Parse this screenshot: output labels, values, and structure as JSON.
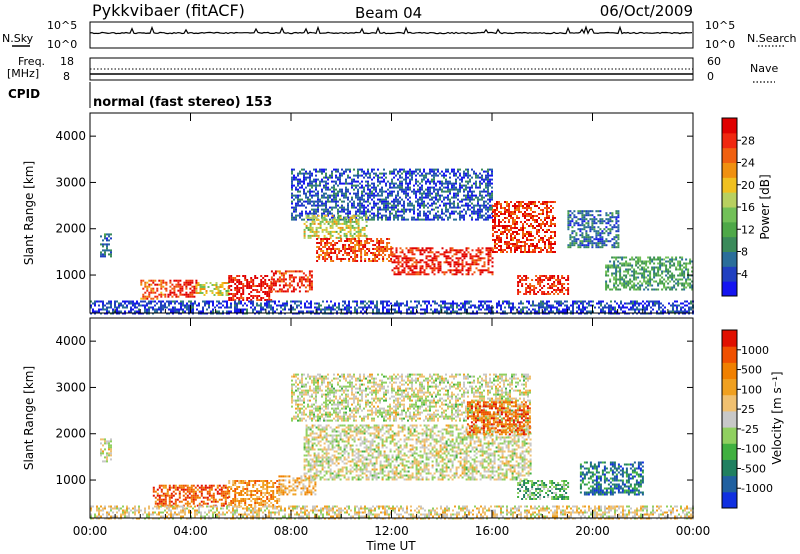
{
  "header": {
    "station": "Pykkvibaer (fitACF)",
    "beam": "Beam 04",
    "date": "06/Oct/2009"
  },
  "noise_panel": {
    "left_label": "N.Sky",
    "right_label": "N.Search",
    "left_ticks": [
      "10^5",
      "10^0"
    ],
    "right_ticks": [
      "10^5",
      "10^0"
    ]
  },
  "freq_panel": {
    "left_label_1": "Freq.",
    "left_label_2": "[MHz]",
    "right_label": "Nave",
    "left_ticks": [
      "18",
      "8"
    ],
    "right_ticks": [
      "60",
      "0"
    ]
  },
  "cpid": {
    "label": "CPID",
    "mode": "normal (fast stereo) 153"
  },
  "chart_data": [
    {
      "type": "heatmap",
      "quantity": "power",
      "ylabel": "Slant Range [km]",
      "ylim": [
        180,
        4500
      ],
      "yticks": [
        "1000",
        "2000",
        "3000",
        "4000"
      ],
      "xlim_hours": [
        0,
        24
      ],
      "colorbar": {
        "label": "Power [dB]",
        "ticks": [
          "28",
          "24",
          "20",
          "16",
          "12",
          "8",
          "4"
        ],
        "colors": [
          "#1414f0",
          "#2040c0",
          "#2a6e9a",
          "#3a8a5a",
          "#4ea848",
          "#72c058",
          "#b8d060",
          "#f0c020",
          "#f09010",
          "#f06010",
          "#f02810",
          "#e00000"
        ]
      },
      "regions": [
        {
          "x0": 0.4,
          "x1": 0.8,
          "y0": 1400,
          "y1": 1900,
          "level": 0.2
        },
        {
          "x0": 2.0,
          "x1": 3.0,
          "y0": 500,
          "y1": 900,
          "level": 0.8
        },
        {
          "x0": 3.0,
          "x1": 4.2,
          "y0": 550,
          "y1": 900,
          "level": 0.92
        },
        {
          "x0": 4.2,
          "x1": 5.5,
          "y0": 550,
          "y1": 850,
          "level": 0.55
        },
        {
          "x0": 5.5,
          "x1": 7.2,
          "y0": 450,
          "y1": 1000,
          "level": 0.95
        },
        {
          "x0": 7.2,
          "x1": 8.8,
          "y0": 650,
          "y1": 1100,
          "level": 0.88
        },
        {
          "x0": 8.0,
          "x1": 16.0,
          "y0": 2200,
          "y1": 3300,
          "level": 0.15
        },
        {
          "x0": 8.5,
          "x1": 11.0,
          "y0": 1800,
          "y1": 2300,
          "level": 0.55
        },
        {
          "x0": 9.0,
          "x1": 12.0,
          "y0": 1300,
          "y1": 1800,
          "level": 0.85
        },
        {
          "x0": 12.0,
          "x1": 16.0,
          "y0": 1000,
          "y1": 1600,
          "level": 0.92
        },
        {
          "x0": 16.0,
          "x1": 18.5,
          "y0": 1500,
          "y1": 2600,
          "level": 0.88
        },
        {
          "x0": 17.0,
          "x1": 19.0,
          "y0": 600,
          "y1": 1000,
          "level": 0.9
        },
        {
          "x0": 19.0,
          "x1": 21.0,
          "y0": 1600,
          "y1": 2400,
          "level": 0.2
        },
        {
          "x0": 20.5,
          "x1": 24.0,
          "y0": 700,
          "y1": 1400,
          "level": 0.35
        },
        {
          "x0": 0.0,
          "x1": 24.0,
          "y0": 180,
          "y1": 450,
          "level": 0.12
        }
      ]
    },
    {
      "type": "heatmap",
      "quantity": "velocity",
      "ylabel": "Slant Range [km]",
      "xlabel": "Time UT",
      "ylim": [
        180,
        4500
      ],
      "yticks": [
        "1000",
        "2000",
        "3000",
        "4000"
      ],
      "x_tick_labels": [
        "00:00",
        "04:00",
        "08:00",
        "12:00",
        "16:00",
        "20:00",
        "00:00"
      ],
      "xlim_hours": [
        0,
        24
      ],
      "colorbar": {
        "label": "Velocity [m s⁻¹]",
        "ticks": [
          "1000",
          "500",
          "100",
          "25",
          "-25",
          "-100",
          "-500",
          "-1000"
        ],
        "colors": [
          "#1030e0",
          "#2060a0",
          "#208060",
          "#40b040",
          "#90d060",
          "#c8c8c8",
          "#f0c070",
          "#f0a020",
          "#f08000",
          "#f05000",
          "#e01000"
        ]
      },
      "regions": [
        {
          "x0": 0.4,
          "x1": 0.8,
          "y0": 1400,
          "y1": 1900,
          "level": 0.5
        },
        {
          "x0": 2.5,
          "x1": 5.5,
          "y0": 450,
          "y1": 900,
          "level": 0.85
        },
        {
          "x0": 5.5,
          "x1": 7.5,
          "y0": 400,
          "y1": 1000,
          "level": 0.72
        },
        {
          "x0": 7.5,
          "x1": 9.0,
          "y0": 700,
          "y1": 1100,
          "level": 0.65
        },
        {
          "x0": 8.0,
          "x1": 17.5,
          "y0": 2300,
          "y1": 3300,
          "level": 0.5
        },
        {
          "x0": 8.5,
          "x1": 17.5,
          "y0": 1000,
          "y1": 2200,
          "level": 0.5
        },
        {
          "x0": 15.0,
          "x1": 17.5,
          "y0": 2000,
          "y1": 2700,
          "level": 0.82
        },
        {
          "x0": 17.0,
          "x1": 19.0,
          "y0": 600,
          "y1": 1000,
          "level": 0.35
        },
        {
          "x0": 19.5,
          "x1": 22.0,
          "y0": 700,
          "y1": 1400,
          "level": 0.2
        },
        {
          "x0": 0.0,
          "x1": 24.0,
          "y0": 180,
          "y1": 450,
          "level": 0.55
        }
      ]
    }
  ]
}
